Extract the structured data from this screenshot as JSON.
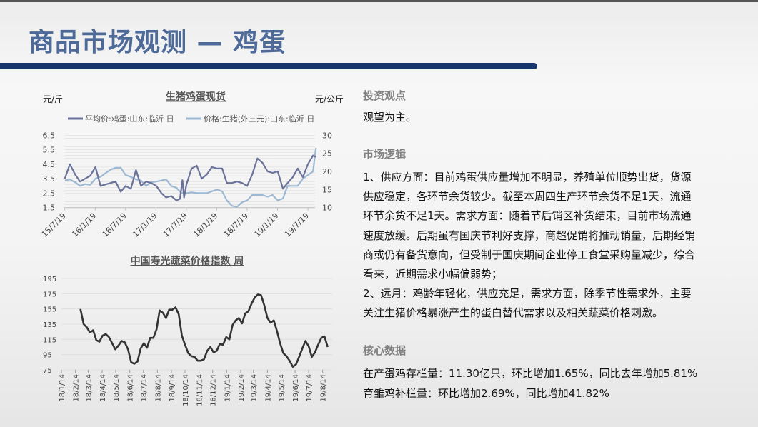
{
  "header": {
    "title": "商品市场观测 — 鸡蛋"
  },
  "colors": {
    "title": "#4e6a99",
    "bar": "#17356b",
    "egg_series": "#6b7299",
    "pig_series": "#9db8d2",
    "veg_series": "#333333",
    "heading": "#808080"
  },
  "right_panel": {
    "view_heading": "投资观点",
    "view_text": "观望为主。",
    "logic_heading": "市场逻辑",
    "logic_lines": [
      "1、供应方面：目前鸡蛋供应量增加不明显，养殖单位顺势出货，货源",
      "供应稳定，各环节余货较少。截至本周四生产环节余货不足1天，流通",
      "环节余货不足1天。需求方面：随着节后销区补货结束，目前市场流通",
      "速度放缓。后期虽有国庆节利好支撑，商超促销将推动销量，后期经销",
      "商或仍有备货意向，但受制于国庆期间企业停工食堂采购量减少，综合",
      "看来，近期需求小幅偏弱势；",
      "2、远月：鸡龄年轻化，供应充足，需求方面，除季节性需求外，主要",
      "关注生猪价格暴涨产生的蛋白替代需求以及相关蔬菜价格刺激。"
    ],
    "core_heading": "核心数据",
    "core_lines": [
      "在产蛋鸡存栏量：11.30亿只，环比增加1.65%，同比去年增加5.81%",
      "育雏鸡补栏量：环比增加2.69%，同比增加41.82%"
    ]
  },
  "chart_data": [
    {
      "type": "line",
      "title": "生猪鸡蛋现货",
      "ylabel": "元/斤",
      "y2label": "元/公斤",
      "ylim": [
        1.5,
        6.5
      ],
      "yticks": [
        "6.5",
        "5.5",
        "4.5",
        "3.5",
        "2.5",
        "1.5"
      ],
      "y2lim": [
        10,
        30
      ],
      "y2ticks": [
        "30",
        "25",
        "20",
        "15",
        "10"
      ],
      "xticks": [
        "15/7/19",
        "16/1/19",
        "16/7/19",
        "17/1/19",
        "17/7/19",
        "18/1/19",
        "18/7/19",
        "19/1/19",
        "19/7/19"
      ],
      "grid": true,
      "legend": "top",
      "series": [
        {
          "name": "平均价:鸡蛋:山东:临沂 日",
          "axis": "left",
          "x": [
            "2015-07-19",
            "2015-08-19",
            "2015-09-19",
            "2015-10-19",
            "2015-11-19",
            "2015-12-19",
            "2016-01-19",
            "2016-02-19",
            "2016-03-19",
            "2016-04-19",
            "2016-05-19",
            "2016-06-19",
            "2016-07-19",
            "2016-08-19",
            "2016-09-19",
            "2016-10-19",
            "2016-11-19",
            "2016-12-19",
            "2017-01-19",
            "2017-02-19",
            "2017-03-19",
            "2017-04-19",
            "2017-05-19",
            "2017-06-10",
            "2017-06-25",
            "2017-07-05",
            "2017-07-19",
            "2017-08-19",
            "2017-09-19",
            "2017-10-19",
            "2017-11-19",
            "2017-12-19",
            "2018-01-19",
            "2018-02-19",
            "2018-03-19",
            "2018-04-19",
            "2018-05-19",
            "2018-06-19",
            "2018-07-19",
            "2018-08-19",
            "2018-09-19",
            "2018-10-19",
            "2018-11-19",
            "2018-12-19",
            "2019-01-19",
            "2019-02-19",
            "2019-03-19",
            "2019-04-19",
            "2019-05-19",
            "2019-06-19",
            "2019-07-19",
            "2019-08-19",
            "2019-09-05"
          ],
          "values": [
            3.5,
            4.5,
            3.8,
            3.3,
            3.5,
            3.7,
            4.3,
            3.0,
            3.1,
            3.2,
            3.3,
            2.6,
            3.0,
            2.8,
            4.1,
            3.0,
            3.3,
            3.2,
            3.0,
            2.5,
            2.2,
            2.3,
            2.0,
            2.1,
            3.4,
            2.2,
            3.1,
            4.2,
            4.4,
            3.5,
            3.8,
            4.3,
            4.2,
            4.2,
            3.2,
            3.2,
            3.3,
            3.2,
            3.0,
            3.8,
            4.9,
            4.6,
            4.0,
            3.9,
            4.0,
            2.8,
            3.2,
            3.6,
            4.2,
            3.6,
            4.5,
            5.1,
            5.0
          ]
        },
        {
          "name": "价格:生猪(外三元):山东:临沂 日",
          "axis": "right",
          "x": [
            "2015-07-19",
            "2015-08-19",
            "2015-09-19",
            "2015-10-19",
            "2015-11-19",
            "2015-12-19",
            "2016-01-19",
            "2016-02-19",
            "2016-03-19",
            "2016-04-19",
            "2016-05-19",
            "2016-06-19",
            "2016-07-19",
            "2016-08-19",
            "2016-09-19",
            "2016-10-19",
            "2016-11-19",
            "2016-12-19",
            "2017-01-19",
            "2017-02-19",
            "2017-03-19",
            "2017-04-19",
            "2017-05-19",
            "2017-06-19",
            "2017-07-19",
            "2017-08-19",
            "2017-09-19",
            "2017-10-19",
            "2017-11-19",
            "2017-12-19",
            "2018-01-19",
            "2018-02-19",
            "2018-03-19",
            "2018-04-19",
            "2018-05-19",
            "2018-06-19",
            "2018-07-19",
            "2018-08-19",
            "2018-09-19",
            "2018-10-19",
            "2018-11-19",
            "2018-12-19",
            "2019-01-19",
            "2019-02-19",
            "2019-03-19",
            "2019-04-19",
            "2019-05-19",
            "2019-06-19",
            "2019-07-19",
            "2019-08-19",
            "2019-09-05"
          ],
          "values": [
            17.5,
            17.8,
            17,
            16,
            16.5,
            16.3,
            18,
            18.5,
            19.5,
            20.5,
            21,
            21,
            19,
            18.5,
            17.8,
            17.5,
            16,
            17,
            17.2,
            17.5,
            17.8,
            16,
            15.5,
            14,
            14,
            14.2,
            14,
            14,
            14,
            14.5,
            15,
            14.5,
            12,
            10.5,
            10.2,
            11.5,
            12,
            13.5,
            13.5,
            13.5,
            13,
            13.5,
            12,
            12.5,
            16,
            16,
            16,
            18,
            19,
            20,
            26.5
          ]
        }
      ]
    },
    {
      "type": "line",
      "title": "中国寿光蔬菜价格指数 周",
      "ylim": [
        75,
        195
      ],
      "yticks": [
        "195",
        "175",
        "155",
        "135",
        "115",
        "95",
        "75"
      ],
      "xticks": [
        "18/1/14",
        "18/2/14",
        "18/3/14",
        "18/4/14",
        "18/5/14",
        "18/6/14",
        "18/7/14",
        "18/8/14",
        "18/9/14",
        "18/10/14",
        "18/11/14",
        "18/12/14",
        "19/1/14",
        "19/2/14",
        "19/3/14",
        "19/4/14",
        "19/5/14",
        "19/6/14",
        "19/7/14",
        "19/8/14"
      ],
      "grid": true,
      "series": [
        {
          "x": [
            "2018-02-25",
            "2018-03-04",
            "2018-03-11",
            "2018-03-18",
            "2018-03-25",
            "2018-04-01",
            "2018-04-08",
            "2018-04-15",
            "2018-04-22",
            "2018-04-29",
            "2018-05-06",
            "2018-05-13",
            "2018-05-20",
            "2018-05-27",
            "2018-06-03",
            "2018-06-10",
            "2018-06-17",
            "2018-06-24",
            "2018-07-01",
            "2018-07-08",
            "2018-07-15",
            "2018-07-22",
            "2018-07-29",
            "2018-08-05",
            "2018-08-12",
            "2018-08-19",
            "2018-08-26",
            "2018-09-02",
            "2018-09-09",
            "2018-09-16",
            "2018-09-23",
            "2018-09-30",
            "2018-10-07",
            "2018-10-14",
            "2018-10-21",
            "2018-10-28",
            "2018-11-04",
            "2018-11-11",
            "2018-11-18",
            "2018-11-25",
            "2018-12-02",
            "2018-12-09",
            "2018-12-16",
            "2018-12-23",
            "2018-12-30",
            "2019-01-06",
            "2019-01-13",
            "2019-01-20",
            "2019-01-27",
            "2019-02-03",
            "2019-02-10",
            "2019-02-17",
            "2019-02-24",
            "2019-03-03",
            "2019-03-10",
            "2019-03-17",
            "2019-03-24",
            "2019-03-31",
            "2019-04-07",
            "2019-04-14",
            "2019-04-21",
            "2019-04-28",
            "2019-05-05",
            "2019-05-12",
            "2019-05-19",
            "2019-05-26",
            "2019-06-02",
            "2019-06-09",
            "2019-06-16",
            "2019-06-23",
            "2019-06-30",
            "2019-07-07",
            "2019-07-14",
            "2019-07-21",
            "2019-07-28",
            "2019-08-04",
            "2019-08-11",
            "2019-08-18",
            "2019-08-25"
          ],
          "values": [
            155,
            135,
            131,
            124,
            127,
            114,
            112,
            120,
            122,
            118,
            110,
            102,
            107,
            113,
            111,
            102,
            85,
            83,
            86,
            103,
            110,
            104,
            117,
            117,
            128,
            153,
            150,
            143,
            154,
            154,
            157,
            148,
            120,
            108,
            97,
            93,
            92,
            87,
            87,
            89,
            100,
            105,
            98,
            100,
            109,
            108,
            118,
            115,
            134,
            140,
            143,
            136,
            149,
            152,
            162,
            170,
            174,
            173,
            160,
            143,
            137,
            140,
            126,
            110,
            97,
            93,
            87,
            79,
            82,
            92,
            103,
            113,
            106,
            92,
            98,
            108,
            117,
            119,
            105
          ]
        }
      ]
    }
  ]
}
